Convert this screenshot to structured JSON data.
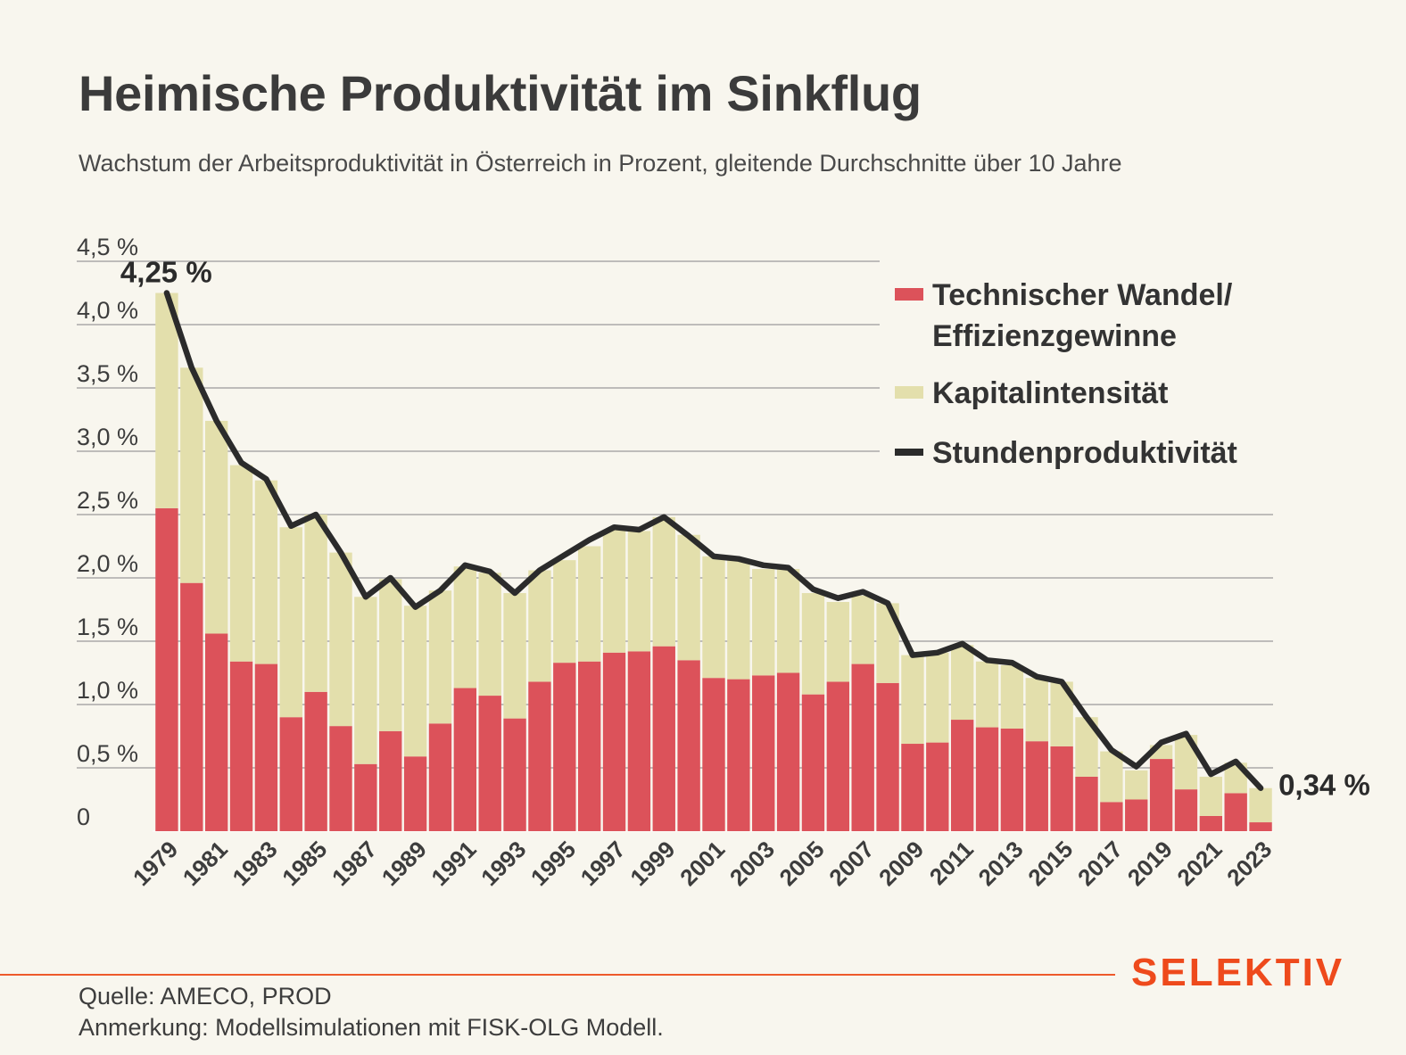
{
  "title": "Heimische Produktivität im Sinkflug",
  "subtitle": "Wachstum der Arbeitsproduktivität in Österreich in Prozent, gleitende Durchschnitte über 10 Jahre",
  "footer": {
    "source": "Quelle: AMECO, PROD",
    "note": "Anmerkung: Modellsimulationen mit FISK-OLG Modell.",
    "brand": "SELEKTIV"
  },
  "colors": {
    "technical": "#dc525a",
    "capital": "#e3dfac",
    "line": "#2b2b2b",
    "grid": "#9a9a9a",
    "brand": "#ee4a1c"
  },
  "chart_data": {
    "type": "bar",
    "stacked": true,
    "ylim": [
      0,
      4.5
    ],
    "y_ticks": [
      {
        "value": 0,
        "label": "0"
      },
      {
        "value": 0.5,
        "label": "0,5 %"
      },
      {
        "value": 1.0,
        "label": "1,0 %"
      },
      {
        "value": 1.5,
        "label": "1,5 %"
      },
      {
        "value": 2.0,
        "label": "2,0 %"
      },
      {
        "value": 2.5,
        "label": "2,5 %"
      },
      {
        "value": 3.0,
        "label": "3,0 %"
      },
      {
        "value": 3.5,
        "label": "3,5 %"
      },
      {
        "value": 4.0,
        "label": "4,0 %"
      },
      {
        "value": 4.5,
        "label": "4,5 %"
      }
    ],
    "grid": true,
    "legend_position": "top-right",
    "categories": [
      1979,
      1980,
      1981,
      1982,
      1983,
      1984,
      1985,
      1986,
      1987,
      1988,
      1989,
      1990,
      1991,
      1992,
      1993,
      1994,
      1995,
      1996,
      1997,
      1998,
      1999,
      2000,
      2001,
      2002,
      2003,
      2004,
      2005,
      2006,
      2007,
      2008,
      2009,
      2010,
      2011,
      2012,
      2013,
      2014,
      2015,
      2016,
      2017,
      2018,
      2019,
      2020,
      2021,
      2022,
      2023
    ],
    "tick_labels": [
      "1979",
      "1981",
      "1983",
      "1985",
      "1987",
      "1989",
      "1991",
      "1993",
      "1995",
      "1997",
      "1999",
      "2001",
      "2003",
      "2005",
      "2007",
      "2009",
      "2011",
      "2013",
      "2015",
      "2017",
      "2019",
      "2021",
      "2023"
    ],
    "series": [
      {
        "name": "Technischer Wandel/ Effizienzgewinne",
        "legend_lines": [
          "Technischer Wandel/",
          "Effizienzgewinne"
        ],
        "kind": "bar",
        "values": [
          2.55,
          1.96,
          1.56,
          1.34,
          1.32,
          0.9,
          1.1,
          0.83,
          0.53,
          0.79,
          0.59,
          0.85,
          1.13,
          1.07,
          0.89,
          1.18,
          1.33,
          1.34,
          1.41,
          1.42,
          1.46,
          1.35,
          1.21,
          1.2,
          1.23,
          1.25,
          1.08,
          1.18,
          1.32,
          1.17,
          0.69,
          0.7,
          0.88,
          0.82,
          0.81,
          0.71,
          0.67,
          0.43,
          0.23,
          0.25,
          0.57,
          0.33,
          0.12,
          0.3,
          0.07
        ]
      },
      {
        "name": "Kapitalintensität",
        "legend_lines": [
          "Kapitalintensität"
        ],
        "kind": "bar",
        "values": [
          1.7,
          1.7,
          1.68,
          1.55,
          1.45,
          1.5,
          1.4,
          1.37,
          1.32,
          1.2,
          1.19,
          1.05,
          0.96,
          0.97,
          0.99,
          0.88,
          0.81,
          0.91,
          0.97,
          0.95,
          1.02,
          0.99,
          0.96,
          0.95,
          0.84,
          0.82,
          0.8,
          0.63,
          0.54,
          0.63,
          0.7,
          0.71,
          0.59,
          0.52,
          0.5,
          0.5,
          0.51,
          0.47,
          0.4,
          0.23,
          0.11,
          0.43,
          0.31,
          0.24,
          0.27
        ]
      },
      {
        "name": "Stundenproduktivität",
        "legend_lines": [
          "Stundenproduktivität"
        ],
        "kind": "line",
        "values": [
          4.25,
          3.66,
          3.24,
          2.91,
          2.78,
          2.41,
          2.5,
          2.2,
          1.85,
          2.0,
          1.77,
          1.9,
          2.1,
          2.05,
          1.88,
          2.06,
          2.18,
          2.3,
          2.4,
          2.38,
          2.48,
          2.33,
          2.17,
          2.15,
          2.1,
          2.08,
          1.91,
          1.84,
          1.89,
          1.8,
          1.39,
          1.41,
          1.48,
          1.35,
          1.33,
          1.22,
          1.18,
          0.9,
          0.64,
          0.51,
          0.7,
          0.77,
          0.45,
          0.55,
          0.34
        ]
      }
    ],
    "annotations": [
      {
        "label": "4,25 %",
        "year": 1979
      },
      {
        "label": "0,34 %",
        "year": 2023
      }
    ]
  }
}
